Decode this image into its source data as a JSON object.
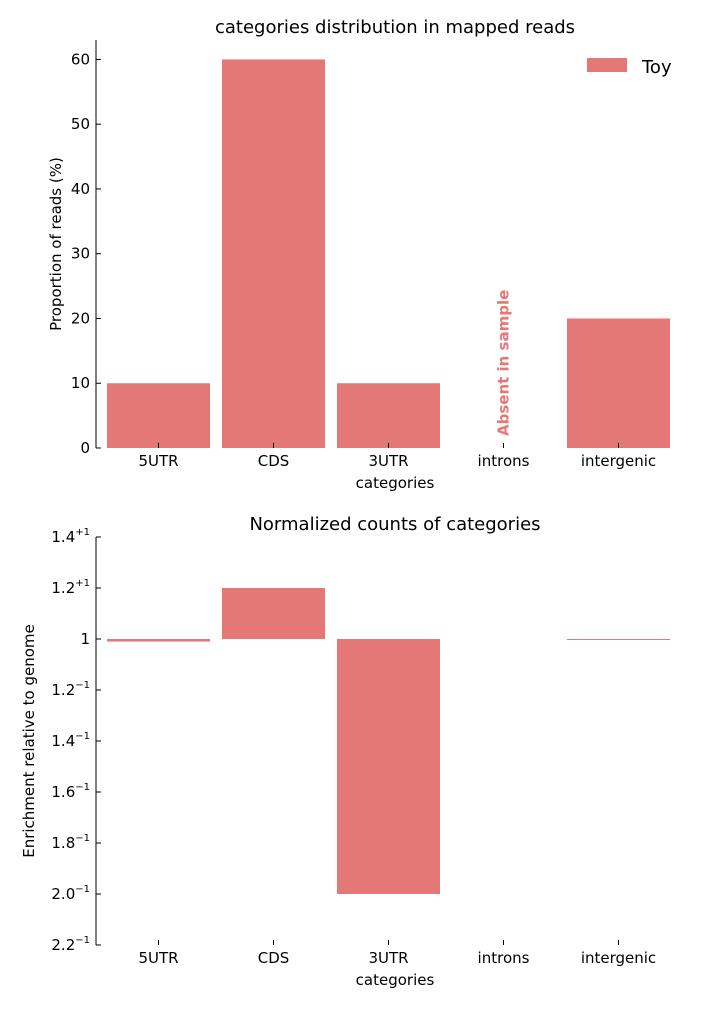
{
  "chart_data": [
    {
      "type": "bar",
      "title": "categories distribution in mapped reads",
      "xlabel": "categories",
      "ylabel": "Proportion of reads (%)",
      "categories": [
        "5UTR",
        "CDS",
        "3UTR",
        "introns",
        "intergenic"
      ],
      "series": [
        {
          "name": "Toy",
          "values": [
            10,
            60,
            10,
            null,
            20
          ]
        }
      ],
      "ylim": [
        0,
        63
      ],
      "yticks": [
        "0",
        "10",
        "20",
        "30",
        "40",
        "50",
        "60"
      ],
      "annotation": "Absent in sample",
      "legend_position": "top-right",
      "grid": false
    },
    {
      "type": "bar",
      "title": "Normalized counts of categories",
      "xlabel": "categories",
      "ylabel": "Enrichment relative to genome",
      "categories": [
        "5UTR",
        "CDS",
        "3UTR",
        "introns",
        "intergenic"
      ],
      "series": [
        {
          "values": [
            -1.01,
            1.2,
            -2.0,
            null,
            -1.002
          ]
        }
      ],
      "ylim": [
        -2.2,
        1.4
      ],
      "yticks": [
        {
          "base": "1.4",
          "exp": "+1"
        },
        {
          "base": "1.2",
          "exp": "+1"
        },
        {
          "base": "1",
          "exp": ""
        },
        {
          "base": "1.2",
          "exp": "−1"
        },
        {
          "base": "1.4",
          "exp": "−1"
        },
        {
          "base": "1.6",
          "exp": "−1"
        },
        {
          "base": "1.8",
          "exp": "−1"
        },
        {
          "base": "2.0",
          "exp": "−1"
        },
        {
          "base": "2.2",
          "exp": "−1"
        }
      ],
      "grid": false
    }
  ],
  "colors": {
    "bar": "#e47877",
    "axis": "#000000",
    "text": "#000000"
  }
}
